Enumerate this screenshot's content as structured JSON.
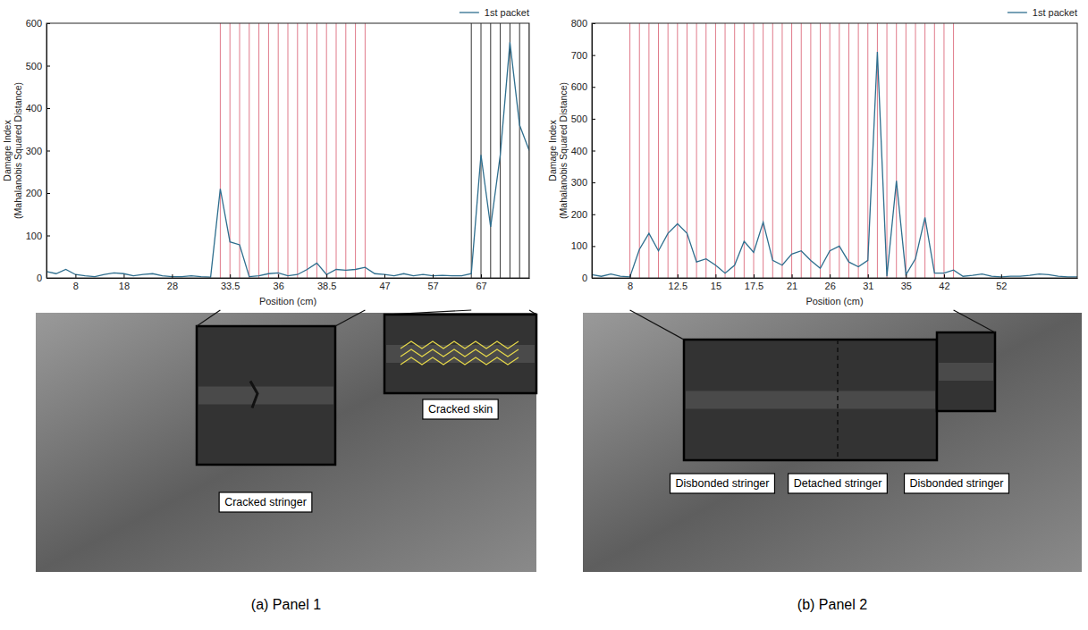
{
  "chart_data": [
    {
      "type": "line",
      "caption": "(a) Panel 1",
      "x_label": "Position (cm)",
      "y_label": [
        "Damage Index",
        "(Mahalanobis Squared Distance)"
      ],
      "categories": [
        null,
        null,
        null,
        "8",
        null,
        null,
        null,
        null,
        "18",
        null,
        null,
        null,
        null,
        "28",
        null,
        null,
        null,
        null,
        null,
        "33.5",
        null,
        null,
        null,
        null,
        "36",
        null,
        null,
        null,
        null,
        "38.5",
        null,
        null,
        null,
        null,
        null,
        "47",
        null,
        null,
        null,
        null,
        "57",
        null,
        null,
        null,
        null,
        "67",
        null,
        null,
        null,
        null,
        null
      ],
      "series": [
        {
          "name": "1st packet",
          "color": "#2e6e8e",
          "values": [
            15,
            10,
            20,
            8,
            5,
            3,
            8,
            12,
            10,
            5,
            8,
            10,
            5,
            3,
            3,
            5,
            3,
            2,
            210,
            85,
            78,
            3,
            5,
            10,
            12,
            5,
            8,
            20,
            35,
            8,
            20,
            18,
            20,
            25,
            10,
            8,
            5,
            10,
            5,
            8,
            5,
            6,
            5,
            5,
            10,
            290,
            120,
            290,
            555,
            360,
            300
          ]
        }
      ],
      "ylim": [
        0,
        600
      ],
      "yticks": [
        0,
        100,
        200,
        300,
        400,
        500,
        600
      ],
      "legend": "top",
      "regions": [
        {
          "color": "#e07a8a",
          "positions": [
            18,
            19,
            20,
            21,
            22,
            23,
            24,
            25,
            26,
            27,
            28,
            29,
            30,
            31,
            32,
            33
          ]
        },
        {
          "color": "#333333",
          "positions": [
            44,
            45,
            46,
            47,
            48,
            49,
            50
          ]
        }
      ],
      "annotations": [
        "Cracked stringer",
        "Cracked skin"
      ]
    },
    {
      "type": "line",
      "caption": "(b) Panel 2",
      "x_label": "Position (cm)",
      "y_label": [
        "Damage Index",
        "(Mahalanobis Squared Distance)"
      ],
      "categories": [
        null,
        null,
        null,
        null,
        "8",
        null,
        null,
        null,
        null,
        "12.5",
        null,
        null,
        null,
        "15",
        null,
        null,
        null,
        "17.5",
        null,
        null,
        null,
        "21",
        null,
        null,
        null,
        "26",
        null,
        null,
        null,
        "31",
        null,
        null,
        null,
        "35",
        null,
        null,
        null,
        "42",
        null,
        null,
        null,
        null,
        null,
        "52",
        null,
        null,
        null,
        null,
        null,
        null,
        null,
        null
      ],
      "series": [
        {
          "name": "1st packet",
          "color": "#2e6e8e",
          "values": [
            10,
            5,
            12,
            5,
            3,
            90,
            140,
            85,
            140,
            170,
            140,
            50,
            60,
            40,
            15,
            40,
            115,
            80,
            175,
            55,
            40,
            75,
            85,
            55,
            30,
            85,
            100,
            50,
            35,
            55,
            710,
            5,
            305,
            10,
            60,
            190,
            15,
            15,
            25,
            5,
            8,
            12,
            5,
            3,
            5,
            5,
            8,
            12,
            10,
            5,
            3,
            3
          ]
        }
      ],
      "ylim": [
        0,
        800
      ],
      "yticks": [
        0,
        100,
        200,
        300,
        400,
        500,
        600,
        700,
        800
      ],
      "legend": "top",
      "regions": [
        {
          "color": "#e07a8a",
          "positions": [
            4,
            5,
            6,
            7,
            8,
            9,
            10,
            11,
            12,
            13,
            14,
            15,
            16,
            17,
            18,
            19,
            20,
            21,
            22,
            23,
            24,
            25,
            26,
            27,
            28,
            29,
            30,
            31,
            32,
            33,
            34,
            35,
            36,
            37,
            38
          ]
        }
      ],
      "annotations": [
        "Disbonded stringer",
        "Detached stringer",
        "Disbonded stringer"
      ]
    }
  ]
}
